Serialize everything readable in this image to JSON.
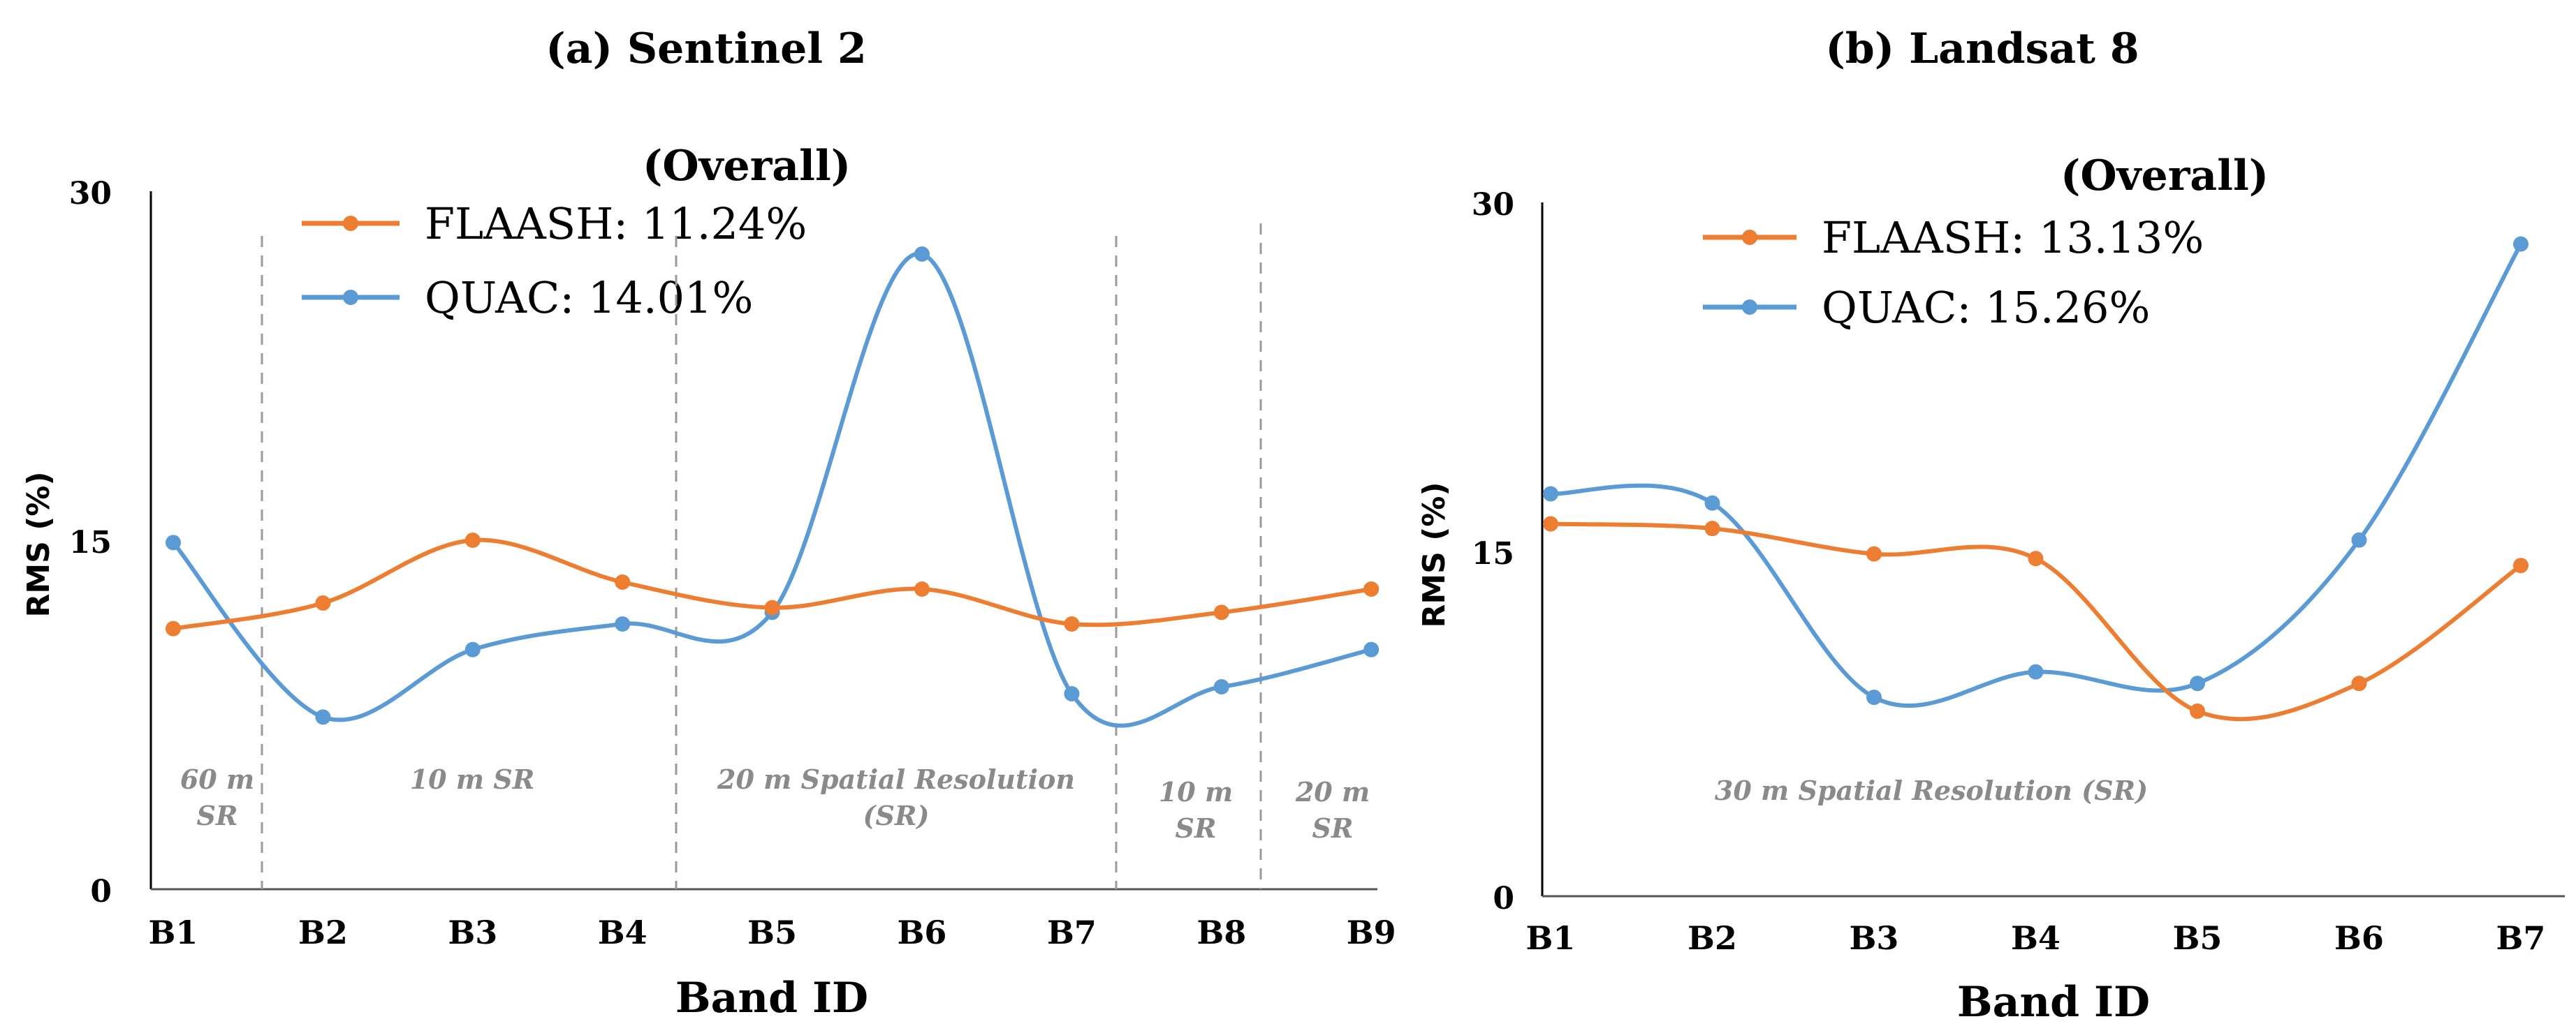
{
  "chart_data": [
    {
      "type": "line",
      "title": "(a) Sentinel 2",
      "xlabel": "Band ID",
      "ylabel": "RMS (%)",
      "categories": [
        "B1",
        "B2",
        "B3",
        "B4",
        "B5",
        "B6",
        "B7",
        "B8",
        "B9"
      ],
      "ylim": [
        0,
        30
      ],
      "yticks": [
        "0",
        "15",
        "30"
      ],
      "legend_title": "(Overall)",
      "series": [
        {
          "name": "FLAASH",
          "label": "FLAASH: 11.24%",
          "color": "#ED7D31",
          "values": [
            11.2,
            12.3,
            15.0,
            13.2,
            12.1,
            12.9,
            11.4,
            11.9,
            12.9
          ]
        },
        {
          "name": "QUAC",
          "label": "QUAC: 14.01%",
          "color": "#5B9BD5",
          "values": [
            14.9,
            7.4,
            10.3,
            11.4,
            11.9,
            27.3,
            8.4,
            8.7,
            10.3
          ]
        }
      ],
      "regions": [
        {
          "lines": [
            "60 m",
            "SR"
          ]
        },
        {
          "lines": [
            "10 m SR"
          ]
        },
        {
          "lines": [
            "20 m Spatial Resolution",
            "(SR)"
          ]
        },
        {
          "lines": [
            "10 m",
            "SR"
          ]
        },
        {
          "lines": [
            "20 m",
            "SR"
          ]
        }
      ]
    },
    {
      "type": "line",
      "title": "(b) Landsat 8",
      "xlabel": "Band ID",
      "ylabel": "RMS (%)",
      "categories": [
        "B1",
        "B2",
        "B3",
        "B4",
        "B5",
        "B6",
        "B7"
      ],
      "ylim": [
        0,
        30
      ],
      "yticks": [
        "0",
        "15",
        "30"
      ],
      "legend_title": "(Overall)",
      "series": [
        {
          "name": "FLAASH",
          "label": "FLAASH: 13.13%",
          "color": "#ED7D31",
          "values": [
            16.1,
            15.9,
            14.8,
            14.6,
            8.0,
            9.2,
            14.3
          ]
        },
        {
          "name": "QUAC",
          "label": "QUAC: 15.26%",
          "color": "#5B9BD5",
          "values": [
            17.4,
            17.0,
            8.6,
            9.7,
            9.2,
            15.4,
            28.2
          ]
        }
      ],
      "regions": [
        {
          "lines": [
            "30 m  Spatial Resolution (SR)"
          ]
        }
      ]
    }
  ]
}
